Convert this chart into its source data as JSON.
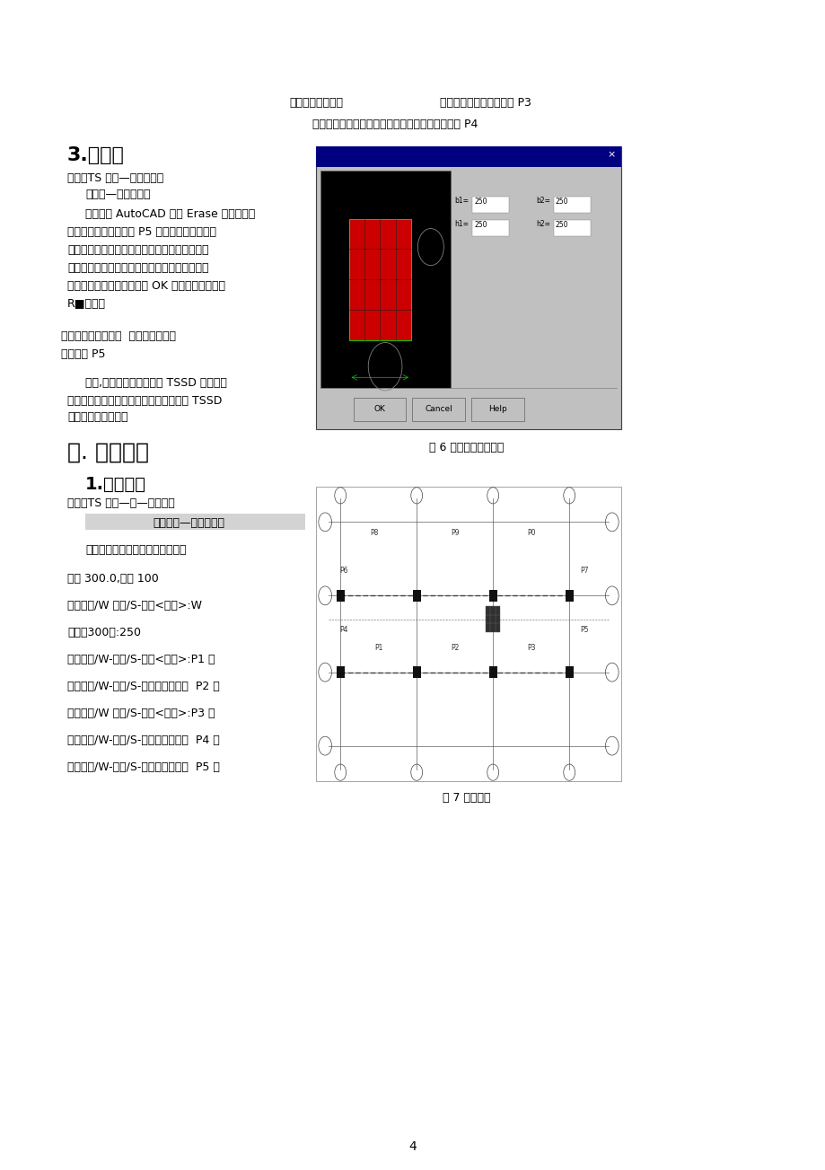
{
  "page_bg": "#ffffff",
  "text_color": "#000000",
  "figsize": [
    9.2,
    13.03
  ],
  "dpi": 100,
  "figure_caption1": "图 6 矩形柱截面对话框",
  "figure_caption2": "图 7 绘制地梁",
  "page_number": "4",
  "top_line1_left": "点取要标注的点：",
  "top_line1_right": "错误！未找到引用源。中 P3",
  "top_line2": "点取文字位置＜退出＞：错误！未找到引用源。中 P4",
  "sec3_title": "3.柱详图",
  "sec3_menu": "菜单：TS 构件—矩形柱截靖",
  "sec3_sub": "（柱子—矩形截面）",
  "sec3_p1a": "首先利用 AutoCAD 中的 Erase 命令擦除错",
  "sec3_p1b": "误！未找到引用源。中 P5 处的柱子，然后点取",
  "sec3_p1c": "菜单。在菜单上点取命令后，出现错误！未找到",
  "sec3_p1d": "引用源。所示对话框：填写好相应的数据，并关",
  "sec3_p1e": "闭编号和轴标选项后，点取 OK 按钒，命令不出疵",
  "sec3_p1f": "R■提示：",
  "sec3_p2a": "请选择图形插入点：  错误！未找到引",
  "sec3_p2b": "用源。中 P5",
  "sec3_p3a": "至此,我们已经初步了解了 TSSD 软件中轴",
  "sec3_p3b": "网和柱子的功能，下面我们来进一步了解 TSSD",
  "sec3_p3c": "中的梁线绘制功能。",
  "sec_three_title": "三. 布置地梁",
  "sec31_title": "1.单轴画梁",
  "sec31_menu": "菜单：TS 平面—梁—单轴画梁",
  "sec31_highlight": "（梁平面—单轴画梁）",
  "sec31_cmd": "在菜单上点取命令后， 命令行提示",
  "cmd1": "梁宽 300.0,比例 100",
  "cmd2": "点取轴线/W 梁宽/S-比例<退出>:W",
  "cmd3": "梁宽＜300＞:250",
  "cmd4": "点取轴线/W-梁宽/S-比例<退出>:P1 点",
  "cmd5": "点取轴线/W-梁宽/S-比例＜退出＞：  P2 点",
  "cmd6": "点取轴线/W 梁宽/S-比例<退出>:P3 点",
  "cmd7": "点取轴线/W-梁宽/S-比例《退出》：  P4 点",
  "cmd8": "点取轴线/W-梁宽/S-比例《退出》：  P5 点"
}
